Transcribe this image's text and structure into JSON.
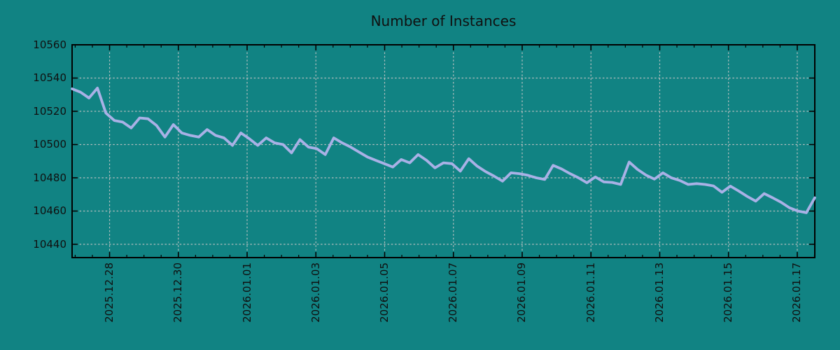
{
  "title": "Number of Instances",
  "colors": {
    "background": "#118383",
    "line": "#a9b1e6",
    "grid": "#c6c6c6",
    "axis": "#000000",
    "text": "#101010"
  },
  "chart_data": {
    "type": "line",
    "title": "Number of Instances",
    "xlabel": "",
    "ylabel": "",
    "legend": false,
    "grid": true,
    "grid_style": "dashed",
    "y_ticks": [
      10440,
      10460,
      10480,
      10500,
      10520,
      10540,
      10560
    ],
    "y_tick_labels": [
      "10440",
      "10460",
      "10480",
      "10500",
      "10520",
      "10540",
      "10560"
    ],
    "ylim": [
      10432,
      10560
    ],
    "x_tick_labels": [
      "2025.12.28",
      "2025.12.30",
      "2026.01.01",
      "2026.01.03",
      "2026.01.05",
      "2026.01.07",
      "2026.01.09",
      "2026.01.11",
      "2026.01.13",
      "2026.01.15",
      "2026.01.17"
    ],
    "x_tick_interval_days": 2,
    "x_minor_tick_interval_days": 0.5,
    "x_span_days": 21.6,
    "first_tick_day_offset": 1.09,
    "series": [
      {
        "name": "Number of Instances",
        "step_hours": 6,
        "values": [
          10533.5,
          10531.5,
          10528,
          10534,
          10519,
          10514.5,
          10513.5,
          10510,
          10516,
          10515.5,
          10511.5,
          10504.5,
          10512,
          10507,
          10505.5,
          10504.5,
          10509,
          10505.5,
          10504,
          10499.5,
          10507,
          10503.5,
          10499.5,
          10504,
          10501,
          10500,
          10495,
          10503,
          10498.5,
          10497.5,
          10494,
          10504,
          10501,
          10498.5,
          10495.5,
          10492.5,
          10490.5,
          10488.5,
          10486.5,
          10491,
          10489,
          10494,
          10490.5,
          10486,
          10489,
          10488.5,
          10484,
          10491.5,
          10487,
          10483.7,
          10481,
          10478,
          10483,
          10482.5,
          10481.5,
          10480,
          10479,
          10487.5,
          10485.3,
          10482.5,
          10480,
          10477,
          10480.5,
          10477.5,
          10477.2,
          10476,
          10489.5,
          10485,
          10481.6,
          10479.2,
          10483,
          10480,
          10478.4,
          10476,
          10476.5,
          10476,
          10475.1,
          10471.3,
          10475,
          10472,
          10468.8,
          10466,
          10470.5,
          10468,
          10465.3,
          10462,
          10460,
          10459,
          10468
        ]
      }
    ]
  }
}
